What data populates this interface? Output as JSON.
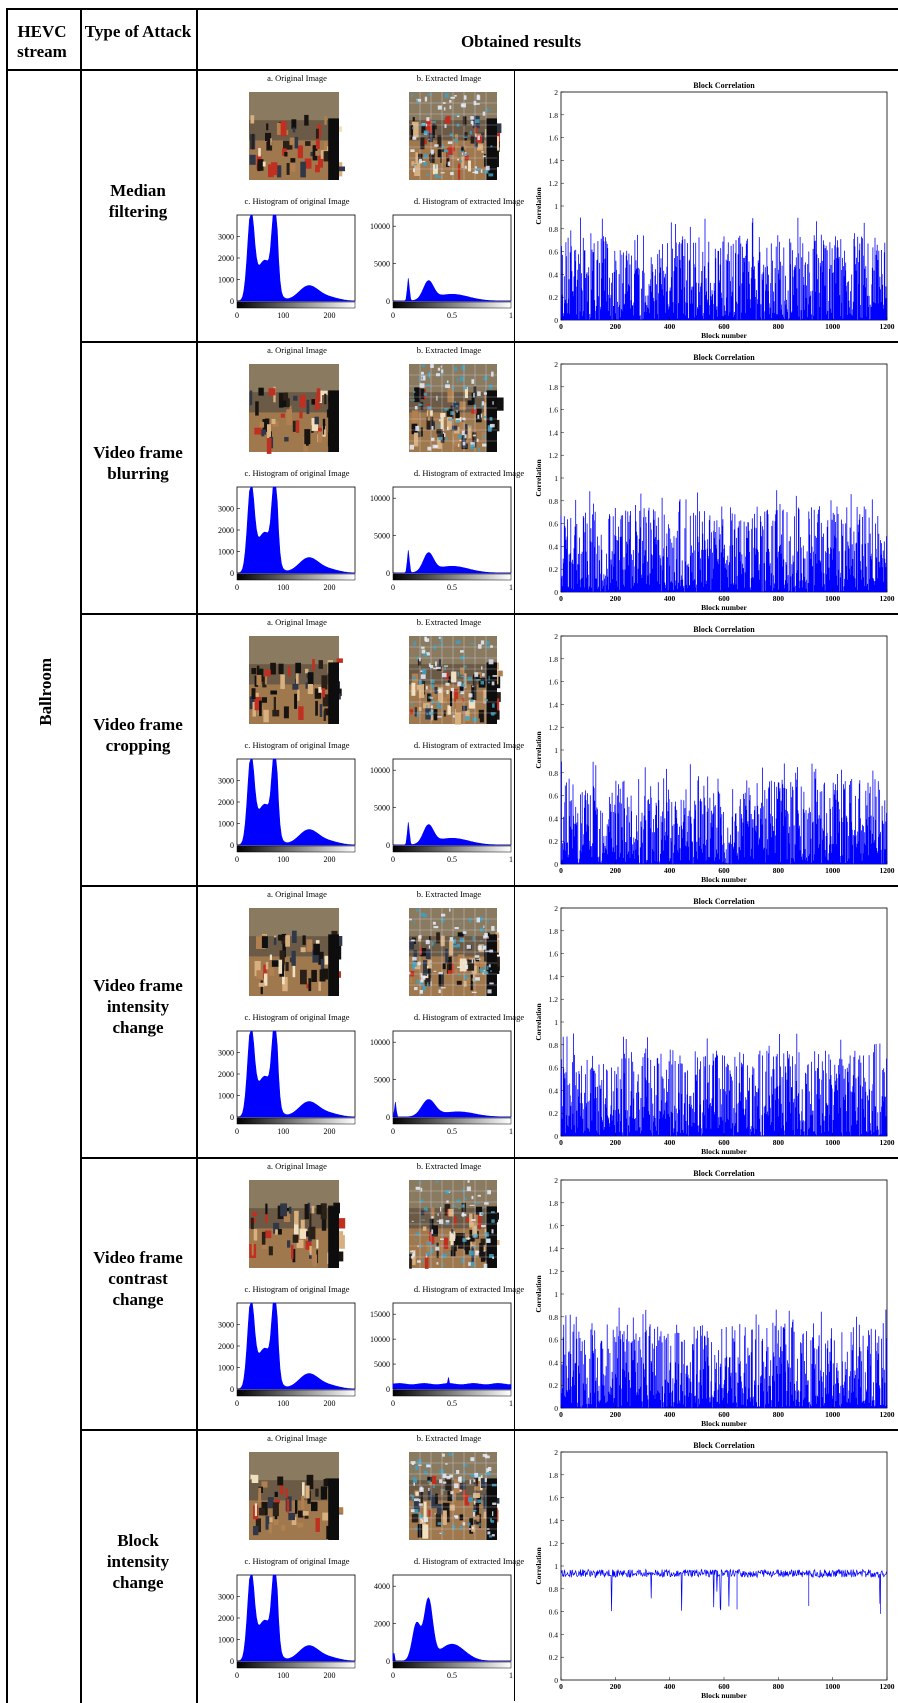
{
  "header": {
    "col1": "HEVC stream",
    "col2": "Type of Attack",
    "col3": "Obtained results"
  },
  "stream": "Ballroom",
  "panel_labels": {
    "original_image": "a. Original Image",
    "extracted_image": "b. Extracted Image",
    "hist_original": "c. Histogram of original Image",
    "hist_extracted": "d. Histogram of extracted Image"
  },
  "rows": [
    {
      "attack": "Median filtering",
      "corr_type": "noisy",
      "hist_ext_yticks": [
        0,
        5000,
        10000
      ],
      "hist_ext_shape": "low_peak"
    },
    {
      "attack": "Video frame blurring",
      "corr_type": "noisy",
      "hist_ext_yticks": [
        0,
        5000,
        10000
      ],
      "hist_ext_shape": "low_peak"
    },
    {
      "attack": "Video frame cropping",
      "corr_type": "noisy",
      "hist_ext_yticks": [
        0,
        5000,
        10000
      ],
      "hist_ext_shape": "low_peak"
    },
    {
      "attack": "Video frame intensity change",
      "corr_type": "noisy",
      "hist_ext_yticks": [
        0,
        5000,
        10000
      ],
      "hist_ext_shape": "flat_peak"
    },
    {
      "attack": "Video frame contrast change",
      "corr_type": "noisy",
      "hist_ext_yticks": [
        0,
        5000,
        10000,
        15000
      ],
      "hist_ext_shape": "flat"
    },
    {
      "attack": "Block intensity change",
      "corr_type": "high",
      "hist_ext_yticks": [
        0,
        2000,
        4000
      ],
      "hist_ext_shape": "tall_peak"
    }
  ],
  "chart_data": [
    {
      "type": "bar",
      "title": "Block Correlation",
      "xlabel": "Block number",
      "ylabel": "Correlation",
      "xlim": [
        0,
        1200
      ],
      "ylim": [
        0,
        2
      ],
      "xticks": [
        0,
        200,
        400,
        600,
        800,
        1000,
        1200
      ],
      "yticks": [
        0,
        0.2,
        0.4,
        0.6,
        0.8,
        1,
        1.2,
        1.4,
        1.6,
        1.8,
        2
      ],
      "values_summary": "noisy correlation per block, mostly 0-0.9"
    },
    {
      "type": "area",
      "title": "c. Histogram of original Image",
      "xlim": [
        0,
        255
      ],
      "xticks": [
        0,
        100,
        200
      ],
      "yticks": [
        0,
        1000,
        2000,
        3000
      ],
      "ylim": [
        0,
        4000
      ]
    },
    {
      "type": "area",
      "title": "d. Histogram of extracted Image",
      "xlim": [
        0,
        1
      ],
      "xticks": [
        0,
        0.5,
        1
      ]
    }
  ],
  "colors": {
    "plot_blue": "#0000ff",
    "border": "#000000"
  }
}
